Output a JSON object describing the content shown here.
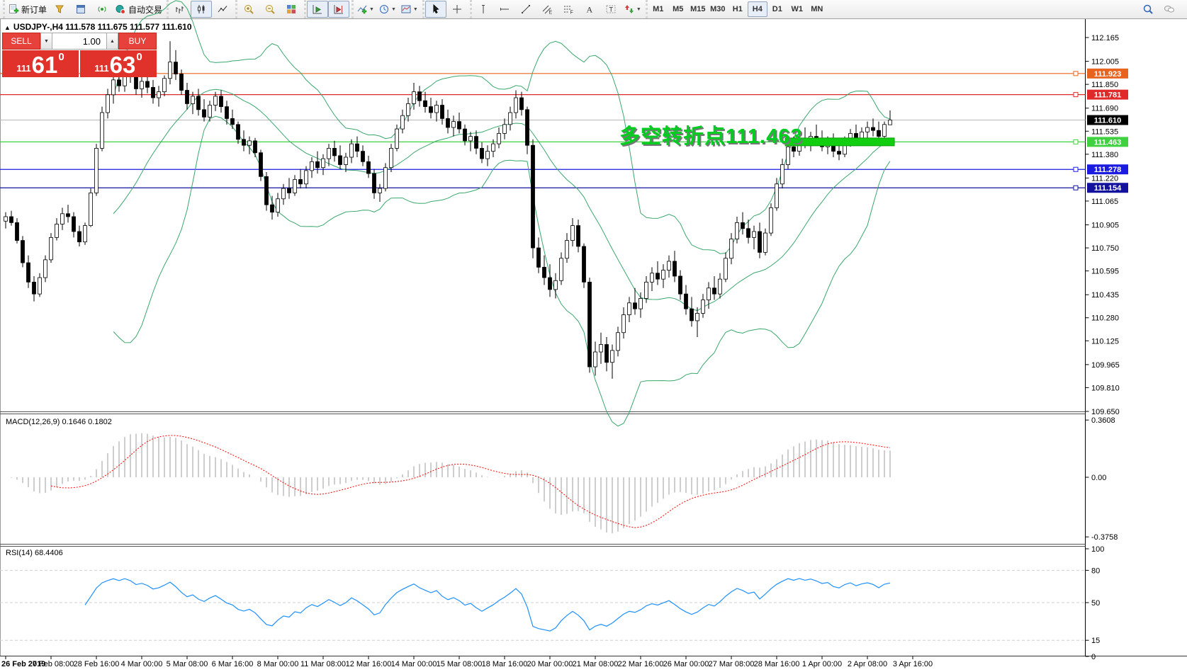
{
  "toolbar": {
    "groups": [
      {
        "items": [
          {
            "name": "new-order-button",
            "icon": "doc-plus",
            "label": "新订单"
          },
          {
            "name": "market-watch-button",
            "icon": "funnel",
            "label": ""
          },
          {
            "name": "new-chart-button",
            "icon": "window",
            "label": ""
          },
          {
            "name": "signals-button",
            "icon": "signal",
            "label": ""
          },
          {
            "name": "autotrading-button",
            "icon": "autotrade",
            "label": "自动交易"
          }
        ]
      },
      {
        "items": [
          {
            "name": "bar-chart-button",
            "icon": "bar-chart"
          },
          {
            "name": "candle-chart-button",
            "icon": "candle-chart",
            "pressed": true
          },
          {
            "name": "line-chart-button",
            "icon": "line-chart"
          }
        ]
      },
      {
        "items": [
          {
            "name": "zoom-in-button",
            "icon": "zoom-in"
          },
          {
            "name": "zoom-out-button",
            "icon": "zoom-out"
          },
          {
            "name": "tile-windows-button",
            "icon": "tile"
          }
        ]
      },
      {
        "items": [
          {
            "name": "auto-scroll-button",
            "icon": "autoscroll",
            "pressed": true
          },
          {
            "name": "chart-shift-button",
            "icon": "shift",
            "pressed": true
          }
        ]
      },
      {
        "items": [
          {
            "name": "indicators-menu",
            "icon": "indicator",
            "caret": true
          },
          {
            "name": "periods-menu",
            "icon": "clock",
            "caret": true
          },
          {
            "name": "templates-menu",
            "icon": "template",
            "caret": true
          }
        ]
      },
      {
        "items": [
          {
            "name": "cursor-button",
            "icon": "cursor",
            "pressed": true
          },
          {
            "name": "crosshair-button",
            "icon": "crosshair"
          }
        ]
      },
      {
        "items": [
          {
            "name": "vertical-line-button",
            "icon": "vline"
          },
          {
            "name": "horizontal-line-button",
            "icon": "hline"
          },
          {
            "name": "trendline-button",
            "icon": "trendline"
          },
          {
            "name": "equidistant-channel-button",
            "icon": "channel"
          },
          {
            "name": "fibonacci-button",
            "icon": "fibo"
          },
          {
            "name": "text-button",
            "icon": "text"
          },
          {
            "name": "text-label-button",
            "icon": "label"
          },
          {
            "name": "arrows-menu",
            "icon": "arrows",
            "caret": true
          }
        ]
      }
    ],
    "timeframes": [
      {
        "label": "M1"
      },
      {
        "label": "M5"
      },
      {
        "label": "M15"
      },
      {
        "label": "M30"
      },
      {
        "label": "H1"
      },
      {
        "label": "H4",
        "pressed": true
      },
      {
        "label": "D1"
      },
      {
        "label": "W1"
      },
      {
        "label": "MN"
      }
    ],
    "right_icons": [
      {
        "name": "search-button",
        "icon": "search"
      },
      {
        "name": "chat-button",
        "icon": "chat"
      }
    ]
  },
  "symbol_title": "USDJPY-,H4  111.578 111.675 111.577 111.610",
  "collapse_arrow": "▲",
  "trade_panel": {
    "sell_label": "SELL",
    "buy_label": "BUY",
    "lot": "1.00",
    "lot_down_glyph": "▼",
    "lot_up_glyph": "▲",
    "sell_price_prefix": "111",
    "sell_price_big": "61",
    "sell_price_sup": "0",
    "buy_price_prefix": "111",
    "buy_price_big": "63",
    "buy_price_sup": "0"
  },
  "annotation": {
    "text": "多空转折点111.463",
    "color": "#00ce1f"
  },
  "indicator_labels": {
    "macd": "MACD(12,26,9) 0.1646 0.1802",
    "rsi": "RSI(14) 68.4406"
  },
  "chart_data": {
    "type": "candlestick",
    "symbol": "USDJPY-",
    "timeframe": "H4",
    "ohlc_current": {
      "open": 111.578,
      "high": 111.675,
      "low": 111.577,
      "close": 111.61
    },
    "price_axis_ticks": [
      112.165,
      112.005,
      111.85,
      111.69,
      111.535,
      111.38,
      111.22,
      111.065,
      110.905,
      110.75,
      110.595,
      110.435,
      110.28,
      110.125,
      109.965,
      109.81,
      109.65
    ],
    "current_price": {
      "value": 111.61,
      "label": "111.610",
      "tag_color": "#000000",
      "line_color": "#b8b8b8"
    },
    "hlines": [
      {
        "price": 111.923,
        "label": "111.923",
        "color": "#e8641e"
      },
      {
        "price": 111.781,
        "label": "111.781",
        "color": "#e02a2a"
      },
      {
        "price": 111.463,
        "label": "111.463",
        "color": "#3fd13f"
      },
      {
        "price": 111.278,
        "label": "111.278",
        "color": "#1c1ce0"
      },
      {
        "price": 111.154,
        "label": "111.154",
        "color": "#12129e"
      }
    ],
    "level_bar": {
      "price": 111.463,
      "bar_from": 138,
      "bar_to": 156,
      "color": "#11ce11"
    },
    "bollinger": {
      "period": 20,
      "deviation": 2,
      "color": "#3aa76d"
    },
    "macd": {
      "params": "12,26,9",
      "value_main": 0.1646,
      "value_signal": 0.1802,
      "axis_ticks": [
        {
          "v": 0.3608,
          "label": "0.3608"
        },
        {
          "v": 0,
          "label": "0.00"
        },
        {
          "v": -0.3758,
          "label": "-0.3758"
        }
      ],
      "hist_color": "#b9b9b9",
      "signal_color": "#ff0000"
    },
    "rsi": {
      "period": 14,
      "value": 68.4406,
      "color": "#1e90ff",
      "axis_ticks": [
        {
          "v": 100,
          "label": "100"
        },
        {
          "v": 80,
          "label": "80"
        },
        {
          "v": 50,
          "label": "50"
        },
        {
          "v": 15,
          "label": "15"
        },
        {
          "v": 0,
          "label": "0"
        }
      ],
      "levels": [
        80,
        50,
        15
      ]
    },
    "time_labels": [
      "26 Feb 2019",
      "27 Feb 08:00",
      "28 Feb 16:00",
      "4 Mar 00:00",
      "5 Mar 08:00",
      "6 Mar 16:00",
      "8 Mar 00:00",
      "11 Mar 08:00",
      "12 Mar 16:00",
      "14 Mar 00:00",
      "15 Mar 08:00",
      "18 Mar 16:00",
      "20 Mar 00:00",
      "21 Mar 08:00",
      "22 Mar 16:00",
      "26 Mar 00:00",
      "27 Mar 08:00",
      "28 Mar 16:00",
      "1 Apr 00:00",
      "2 Apr 08:00",
      "3 Apr 16:00"
    ],
    "label_step_bars": 8,
    "candles": [
      [
        110.93,
        110.99,
        110.88,
        110.96
      ],
      [
        110.96,
        111.0,
        110.9,
        110.92
      ],
      [
        110.92,
        110.95,
        110.78,
        110.8
      ],
      [
        110.8,
        110.83,
        110.62,
        110.65
      ],
      [
        110.65,
        110.7,
        110.48,
        110.52
      ],
      [
        110.52,
        110.56,
        110.39,
        110.44
      ],
      [
        110.44,
        110.58,
        110.42,
        110.55
      ],
      [
        110.55,
        110.7,
        110.52,
        110.67
      ],
      [
        110.67,
        110.85,
        110.65,
        110.82
      ],
      [
        110.82,
        110.95,
        110.8,
        110.91
      ],
      [
        110.91,
        111.02,
        110.87,
        110.98
      ],
      [
        110.98,
        111.04,
        110.92,
        110.96
      ],
      [
        110.96,
        110.99,
        110.82,
        110.86
      ],
      [
        110.86,
        110.9,
        110.76,
        110.79
      ],
      [
        110.79,
        110.92,
        110.77,
        110.9
      ],
      [
        110.9,
        111.15,
        110.89,
        111.12
      ],
      [
        111.12,
        111.45,
        111.1,
        111.42
      ],
      [
        111.42,
        111.7,
        111.4,
        111.66
      ],
      [
        111.66,
        111.82,
        111.62,
        111.78
      ],
      [
        111.78,
        111.92,
        111.72,
        111.88
      ],
      [
        111.88,
        111.96,
        111.8,
        111.84
      ],
      [
        111.84,
        112.0,
        111.8,
        111.94
      ],
      [
        111.94,
        112.01,
        111.86,
        111.9
      ],
      [
        111.9,
        111.95,
        111.78,
        111.82
      ],
      [
        111.82,
        111.9,
        111.76,
        111.87
      ],
      [
        111.87,
        111.93,
        111.79,
        111.83
      ],
      [
        111.83,
        111.88,
        111.72,
        111.76
      ],
      [
        111.76,
        111.84,
        111.7,
        111.8
      ],
      [
        111.8,
        111.91,
        111.77,
        111.89
      ],
      [
        111.89,
        112.14,
        111.85,
        112.0
      ],
      [
        112.0,
        112.08,
        111.88,
        111.92
      ],
      [
        111.92,
        111.95,
        111.78,
        111.81
      ],
      [
        111.81,
        111.86,
        111.68,
        111.72
      ],
      [
        111.72,
        111.8,
        111.65,
        111.77
      ],
      [
        111.77,
        111.82,
        111.64,
        111.68
      ],
      [
        111.68,
        111.75,
        111.6,
        111.63
      ],
      [
        111.63,
        111.74,
        111.6,
        111.71
      ],
      [
        111.71,
        111.8,
        111.67,
        111.77
      ],
      [
        111.77,
        111.81,
        111.66,
        111.7
      ],
      [
        111.7,
        111.74,
        111.58,
        111.62
      ],
      [
        111.62,
        111.68,
        111.55,
        111.58
      ],
      [
        111.58,
        111.6,
        111.45,
        111.48
      ],
      [
        111.48,
        111.54,
        111.4,
        111.44
      ],
      [
        111.44,
        111.5,
        111.38,
        111.47
      ],
      [
        111.47,
        111.49,
        111.36,
        111.39
      ],
      [
        111.39,
        111.41,
        111.2,
        111.23
      ],
      [
        111.23,
        111.26,
        111.0,
        111.04
      ],
      [
        111.04,
        111.1,
        110.94,
        110.99
      ],
      [
        110.99,
        111.12,
        110.96,
        111.08
      ],
      [
        111.08,
        111.18,
        111.04,
        111.15
      ],
      [
        111.15,
        111.22,
        111.08,
        111.12
      ],
      [
        111.12,
        111.24,
        111.1,
        111.21
      ],
      [
        111.21,
        111.28,
        111.15,
        111.18
      ],
      [
        111.18,
        111.3,
        111.15,
        111.27
      ],
      [
        111.27,
        111.36,
        111.22,
        111.33
      ],
      [
        111.33,
        111.4,
        111.25,
        111.29
      ],
      [
        111.29,
        111.38,
        111.24,
        111.35
      ],
      [
        111.35,
        111.45,
        111.3,
        111.42
      ],
      [
        111.42,
        111.47,
        111.33,
        111.37
      ],
      [
        111.37,
        111.44,
        111.28,
        111.31
      ],
      [
        111.31,
        111.39,
        111.26,
        111.36
      ],
      [
        111.36,
        111.48,
        111.32,
        111.45
      ],
      [
        111.45,
        111.5,
        111.36,
        111.4
      ],
      [
        111.4,
        111.44,
        111.3,
        111.33
      ],
      [
        111.33,
        111.37,
        111.22,
        111.25
      ],
      [
        111.25,
        111.28,
        111.08,
        111.12
      ],
      [
        111.12,
        111.18,
        111.06,
        111.15
      ],
      [
        111.15,
        111.32,
        111.13,
        111.29
      ],
      [
        111.29,
        111.45,
        111.26,
        111.42
      ],
      [
        111.42,
        111.58,
        111.4,
        111.55
      ],
      [
        111.55,
        111.68,
        111.52,
        111.64
      ],
      [
        111.64,
        111.76,
        111.6,
        111.72
      ],
      [
        111.72,
        111.86,
        111.68,
        111.8
      ],
      [
        111.8,
        111.84,
        111.7,
        111.74
      ],
      [
        111.74,
        111.8,
        111.66,
        111.7
      ],
      [
        111.7,
        111.76,
        111.62,
        111.66
      ],
      [
        111.66,
        111.74,
        111.6,
        111.71
      ],
      [
        111.71,
        111.75,
        111.58,
        111.62
      ],
      [
        111.62,
        111.68,
        111.52,
        111.56
      ],
      [
        111.56,
        111.64,
        111.5,
        111.6
      ],
      [
        111.6,
        111.66,
        111.52,
        111.55
      ],
      [
        111.55,
        111.58,
        111.44,
        111.47
      ],
      [
        111.47,
        111.53,
        111.4,
        111.5
      ],
      [
        111.5,
        111.54,
        111.38,
        111.42
      ],
      [
        111.42,
        111.46,
        111.32,
        111.35
      ],
      [
        111.35,
        111.44,
        111.3,
        111.4
      ],
      [
        111.4,
        111.48,
        111.36,
        111.45
      ],
      [
        111.45,
        111.56,
        111.42,
        111.52
      ],
      [
        111.52,
        111.62,
        111.48,
        111.58
      ],
      [
        111.58,
        111.7,
        111.54,
        111.66
      ],
      [
        111.66,
        111.81,
        111.62,
        111.76
      ],
      [
        111.76,
        111.8,
        111.64,
        111.68
      ],
      [
        111.68,
        111.7,
        111.38,
        111.44
      ],
      [
        111.44,
        111.48,
        110.68,
        110.75
      ],
      [
        110.75,
        110.82,
        110.58,
        110.62
      ],
      [
        110.62,
        110.7,
        110.5,
        110.55
      ],
      [
        110.55,
        110.64,
        110.42,
        110.47
      ],
      [
        110.47,
        110.58,
        110.41,
        110.53
      ],
      [
        110.53,
        110.72,
        110.5,
        110.68
      ],
      [
        110.68,
        110.85,
        110.65,
        110.8
      ],
      [
        110.8,
        110.95,
        110.76,
        110.9
      ],
      [
        110.9,
        110.94,
        110.72,
        110.76
      ],
      [
        110.76,
        110.78,
        110.48,
        110.52
      ],
      [
        110.52,
        110.55,
        109.91,
        109.95
      ],
      [
        109.95,
        110.12,
        109.89,
        110.05
      ],
      [
        110.05,
        110.18,
        109.97,
        110.1
      ],
      [
        110.1,
        110.15,
        109.92,
        109.98
      ],
      [
        109.98,
        110.1,
        109.87,
        110.06
      ],
      [
        110.06,
        110.22,
        110.02,
        110.18
      ],
      [
        110.18,
        110.35,
        110.14,
        110.3
      ],
      [
        110.3,
        110.42,
        110.25,
        110.38
      ],
      [
        110.38,
        110.48,
        110.3,
        110.34
      ],
      [
        110.34,
        110.45,
        110.28,
        110.41
      ],
      [
        110.41,
        110.56,
        110.38,
        110.52
      ],
      [
        110.52,
        110.62,
        110.46,
        110.58
      ],
      [
        110.58,
        110.66,
        110.5,
        110.54
      ],
      [
        110.54,
        110.64,
        110.48,
        110.6
      ],
      [
        110.6,
        110.7,
        110.55,
        110.66
      ],
      [
        110.66,
        110.73,
        110.52,
        110.56
      ],
      [
        110.56,
        110.6,
        110.4,
        110.44
      ],
      [
        110.44,
        110.5,
        110.3,
        110.34
      ],
      [
        110.34,
        110.42,
        110.22,
        110.26
      ],
      [
        110.26,
        110.35,
        110.15,
        110.31
      ],
      [
        110.31,
        110.44,
        110.28,
        110.4
      ],
      [
        110.4,
        110.52,
        110.34,
        110.48
      ],
      [
        110.48,
        110.56,
        110.4,
        110.44
      ],
      [
        110.44,
        110.58,
        110.41,
        110.54
      ],
      [
        110.54,
        110.72,
        110.52,
        110.68
      ],
      [
        110.68,
        110.85,
        110.64,
        110.81
      ],
      [
        110.81,
        110.96,
        110.78,
        110.92
      ],
      [
        110.92,
        110.99,
        110.84,
        110.88
      ],
      [
        110.88,
        110.94,
        110.78,
        110.82
      ],
      [
        110.82,
        110.9,
        110.74,
        110.86
      ],
      [
        110.86,
        110.92,
        110.68,
        110.72
      ],
      [
        110.72,
        110.88,
        110.7,
        110.85
      ],
      [
        110.85,
        111.05,
        110.83,
        111.02
      ],
      [
        111.02,
        111.22,
        111.0,
        111.18
      ],
      [
        111.18,
        111.35,
        111.15,
        111.31
      ],
      [
        111.31,
        111.46,
        111.28,
        111.43
      ],
      [
        111.43,
        111.5,
        111.36,
        111.4
      ],
      [
        111.4,
        111.52,
        111.37,
        111.48
      ],
      [
        111.48,
        111.56,
        111.42,
        111.45
      ],
      [
        111.45,
        111.53,
        111.4,
        111.5
      ],
      [
        111.5,
        111.58,
        111.44,
        111.47
      ],
      [
        111.47,
        111.54,
        111.4,
        111.43
      ],
      [
        111.43,
        111.5,
        111.38,
        111.46
      ],
      [
        111.46,
        111.52,
        111.36,
        111.4
      ],
      [
        111.4,
        111.46,
        111.34,
        111.38
      ],
      [
        111.38,
        111.5,
        111.36,
        111.47
      ],
      [
        111.47,
        111.55,
        111.43,
        111.52
      ],
      [
        111.52,
        111.58,
        111.45,
        111.48
      ],
      [
        111.48,
        111.56,
        111.44,
        111.53
      ],
      [
        111.53,
        111.6,
        111.48,
        111.56
      ],
      [
        111.56,
        111.62,
        111.5,
        111.54
      ],
      [
        111.54,
        111.6,
        111.47,
        111.5
      ],
      [
        111.5,
        111.6,
        111.47,
        111.58
      ],
      [
        111.578,
        111.675,
        111.577,
        111.61
      ]
    ]
  }
}
